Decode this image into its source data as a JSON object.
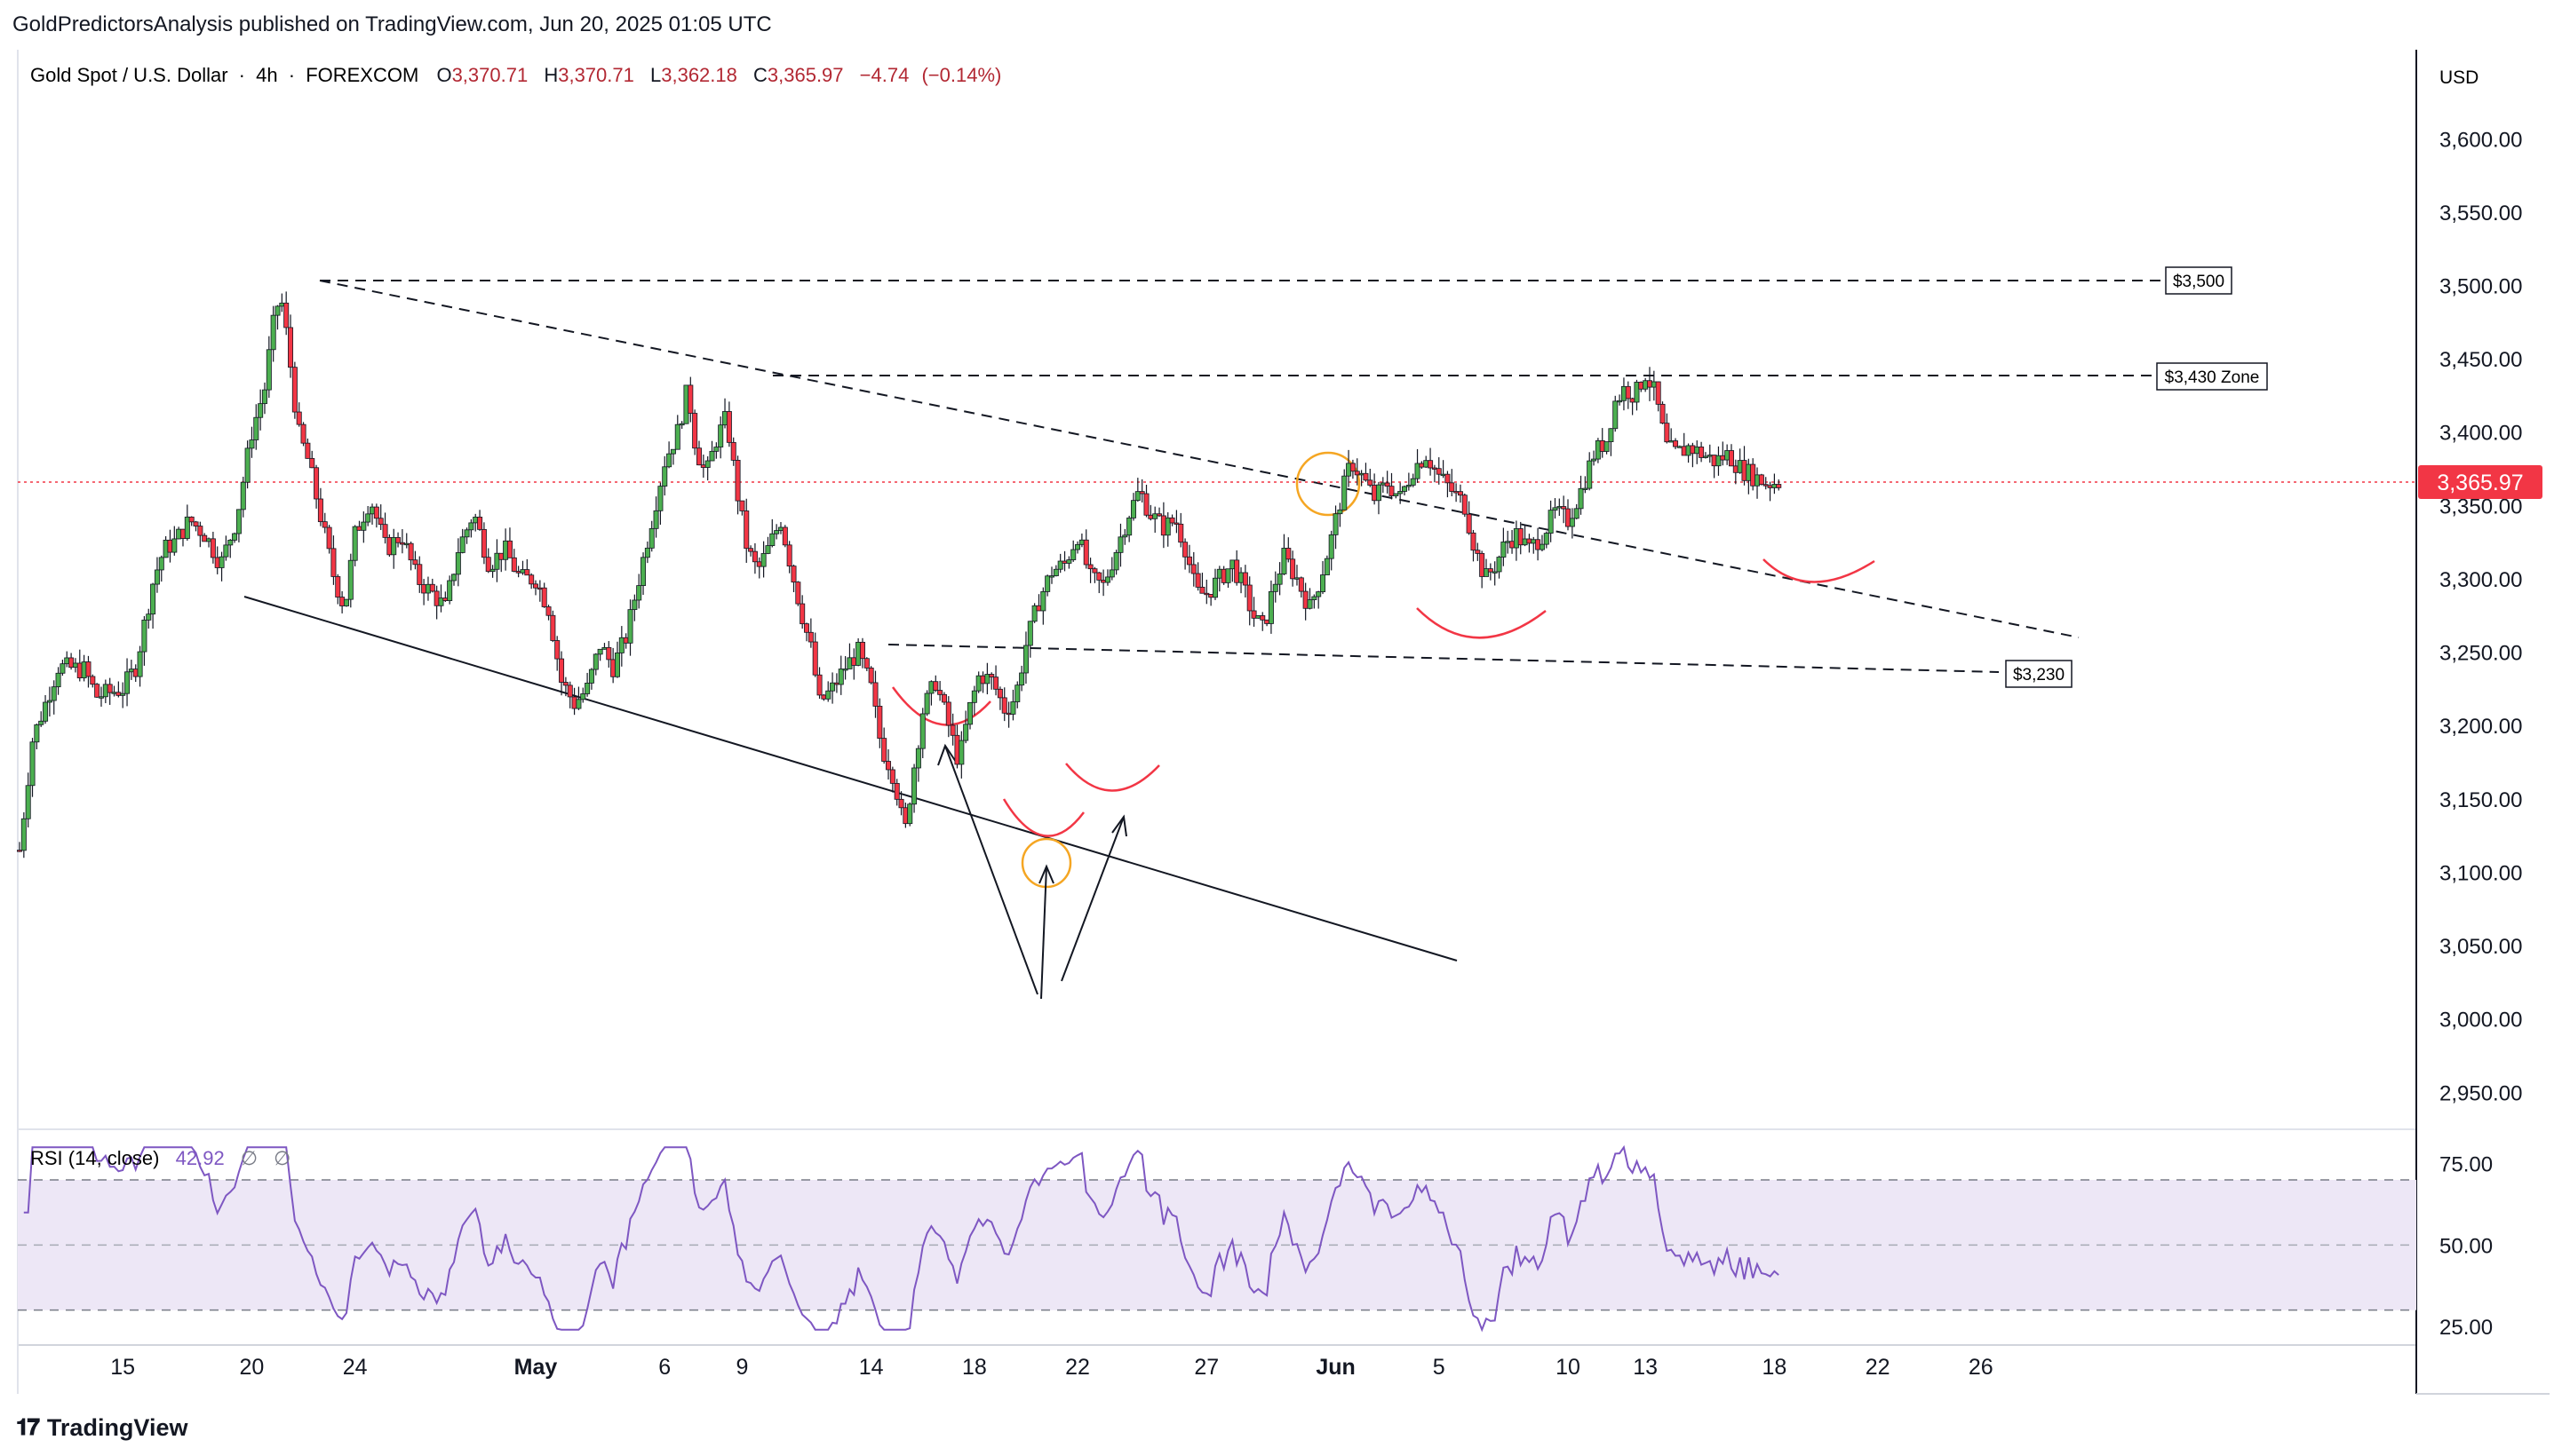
{
  "publisher_line": "GoldPredictorsAnalysis published on TradingView.com, Jun 20, 2025 01:05 UTC",
  "footer": {
    "brand": "TradingView"
  },
  "colors": {
    "bull": "#26a69a",
    "bull_body": "#4caf50",
    "bear": "#ef5350",
    "bear_body": "#f23645",
    "rsi_line": "#7e57c2",
    "rsi_band": "#ede7f6",
    "circle": "#f5a623",
    "last_price_bg": "#f23645"
  },
  "chart_data": [
    {
      "type": "candlestick",
      "symbol": "Gold Spot / U.S. Dollar",
      "interval": "4h",
      "exchange": "FOREXCOM",
      "ohlc_header": {
        "O": "3,370.71",
        "H": "3,370.71",
        "L": "3,362.18",
        "C": "3,365.97",
        "change": "−4.74",
        "change_pct": "(−0.14%)"
      },
      "currency": "USD",
      "last_price": 3365.97,
      "last_price_label": "3,365.97",
      "y_ticks": [
        2950,
        3000,
        3050,
        3100,
        3150,
        3200,
        3250,
        3300,
        3350,
        3400,
        3450,
        3500,
        3550,
        3600
      ],
      "y_tick_labels": [
        "2,950.00",
        "3,000.00",
        "3,050.00",
        "3,100.00",
        "3,150.00",
        "3,200.00",
        "3,250.00",
        "3,300.00",
        "3,350.00",
        "3,400.00",
        "3,450.00",
        "3,500.00",
        "3,550.00",
        "3,600.00"
      ],
      "ylim": [
        2932,
        3628
      ],
      "x_ticks": [
        {
          "label": "15",
          "day": 15
        },
        {
          "label": "20",
          "day": 20
        },
        {
          "label": "24",
          "day": 24
        },
        {
          "label": "May",
          "day": 31
        },
        {
          "label": "6",
          "day": 36
        },
        {
          "label": "9",
          "day": 39
        },
        {
          "label": "14",
          "day": 44
        },
        {
          "label": "18",
          "day": 48
        },
        {
          "label": "22",
          "day": 52
        },
        {
          "label": "27",
          "day": 57
        },
        {
          "label": "Jun",
          "day": 62
        },
        {
          "label": "5",
          "day": 66
        },
        {
          "label": "10",
          "day": 71
        },
        {
          "label": "13",
          "day": 74
        },
        {
          "label": "18",
          "day": 79
        },
        {
          "label": "22",
          "day": 83
        },
        {
          "label": "26",
          "day": 87
        }
      ],
      "x_tick_bold": [
        "May",
        "Jun"
      ],
      "price_path": [
        [
          11,
          3115
        ],
        [
          11.5,
          3190
        ],
        [
          12.5,
          3240
        ],
        [
          13.5,
          3238
        ],
        [
          14,
          3220
        ],
        [
          15,
          3225
        ],
        [
          15.5,
          3240
        ],
        [
          16.2,
          3300
        ],
        [
          16.6,
          3320
        ],
        [
          17,
          3325
        ],
        [
          17.6,
          3340
        ],
        [
          18.2,
          3330
        ],
        [
          18.8,
          3310
        ],
        [
          19.4,
          3340
        ],
        [
          20,
          3400
        ],
        [
          20.5,
          3430
        ],
        [
          20.8,
          3470
        ],
        [
          21.1,
          3495
        ],
        [
          21.4,
          3460
        ],
        [
          21.8,
          3400
        ],
        [
          22.2,
          3380
        ],
        [
          22.7,
          3340
        ],
        [
          23.2,
          3300
        ],
        [
          23.6,
          3280
        ],
        [
          24,
          3330
        ],
        [
          24.6,
          3355
        ],
        [
          25.2,
          3320
        ],
        [
          25.8,
          3330
        ],
        [
          26.4,
          3300
        ],
        [
          27,
          3290
        ],
        [
          27.5,
          3280
        ],
        [
          28,
          3320
        ],
        [
          28.6,
          3345
        ],
        [
          29.2,
          3310
        ],
        [
          29.8,
          3320
        ],
        [
          30.4,
          3300
        ],
        [
          31,
          3300
        ],
        [
          31.5,
          3280
        ],
        [
          32,
          3230
        ],
        [
          32.5,
          3215
        ],
        [
          33,
          3225
        ],
        [
          33.5,
          3255
        ],
        [
          34,
          3240
        ],
        [
          34.5,
          3260
        ],
        [
          35,
          3300
        ],
        [
          35.5,
          3340
        ],
        [
          36,
          3380
        ],
        [
          36.5,
          3400
        ],
        [
          36.9,
          3430
        ],
        [
          37.2,
          3390
        ],
        [
          37.6,
          3370
        ],
        [
          38,
          3395
        ],
        [
          38.4,
          3410
        ],
        [
          38.8,
          3360
        ],
        [
          39.2,
          3320
        ],
        [
          39.6,
          3305
        ],
        [
          40,
          3320
        ],
        [
          40.5,
          3340
        ],
        [
          41,
          3300
        ],
        [
          41.4,
          3270
        ],
        [
          41.7,
          3250
        ],
        [
          42,
          3215
        ],
        [
          42.5,
          3225
        ],
        [
          43,
          3240
        ],
        [
          43.5,
          3250
        ],
        [
          44,
          3225
        ],
        [
          44.4,
          3185
        ],
        [
          44.8,
          3170
        ],
        [
          45,
          3155
        ],
        [
          45.3,
          3125
        ],
        [
          45.6,
          3165
        ],
        [
          46,
          3210
        ],
        [
          46.5,
          3230
        ],
        [
          47,
          3200
        ],
        [
          47.4,
          3175
        ],
        [
          47.8,
          3210
        ],
        [
          48.2,
          3235
        ],
        [
          48.7,
          3230
        ],
        [
          49.2,
          3210
        ],
        [
          49.6,
          3220
        ],
        [
          50,
          3255
        ],
        [
          50.5,
          3285
        ],
        [
          51,
          3305
        ],
        [
          51.5,
          3310
        ],
        [
          52,
          3330
        ],
        [
          52.5,
          3300
        ],
        [
          53,
          3295
        ],
        [
          53.5,
          3320
        ],
        [
          54,
          3345
        ],
        [
          54.4,
          3360
        ],
        [
          54.8,
          3345
        ],
        [
          55.3,
          3335
        ],
        [
          55.8,
          3340
        ],
        [
          56.2,
          3320
        ],
        [
          56.6,
          3290
        ],
        [
          57,
          3290
        ],
        [
          57.5,
          3300
        ],
        [
          58,
          3310
        ],
        [
          58.4,
          3295
        ],
        [
          58.8,
          3275
        ],
        [
          59.2,
          3265
        ],
        [
          59.6,
          3295
        ],
        [
          60,
          3315
        ],
        [
          60.5,
          3300
        ],
        [
          61,
          3280
        ],
        [
          61.4,
          3300
        ],
        [
          61.8,
          3325
        ],
        [
          62.2,
          3355
        ],
        [
          62.6,
          3380
        ],
        [
          63,
          3370
        ],
        [
          63.5,
          3355
        ],
        [
          64,
          3365
        ],
        [
          64.5,
          3355
        ],
        [
          65,
          3375
        ],
        [
          65.5,
          3385
        ],
        [
          66,
          3370
        ],
        [
          66.5,
          3360
        ],
        [
          67,
          3350
        ],
        [
          67.4,
          3320
        ],
        [
          67.8,
          3300
        ],
        [
          68.2,
          3310
        ],
        [
          68.6,
          3325
        ],
        [
          69,
          3330
        ],
        [
          69.5,
          3320
        ],
        [
          70,
          3330
        ],
        [
          70.5,
          3345
        ],
        [
          71,
          3340
        ],
        [
          71.5,
          3360
        ],
        [
          72,
          3385
        ],
        [
          72.5,
          3395
        ],
        [
          72.8,
          3420
        ],
        [
          73.2,
          3430
        ],
        [
          73.6,
          3425
        ],
        [
          74,
          3440
        ],
        [
          74.4,
          3425
        ],
        [
          74.8,
          3390
        ],
        [
          75.2,
          3385
        ],
        [
          75.7,
          3390
        ],
        [
          76.2,
          3385
        ],
        [
          76.7,
          3380
        ],
        [
          77.2,
          3385
        ],
        [
          77.7,
          3375
        ],
        [
          78.2,
          3370
        ],
        [
          78.7,
          3365
        ],
        [
          79.2,
          3366
        ]
      ],
      "annotation_labels": [
        "$3,500",
        "$3,430 Zone",
        "$3,230"
      ]
    },
    {
      "type": "line",
      "indicator": "RSI (14, close)",
      "value_label": "42.92",
      "extra_labels": [
        "∅",
        "∅"
      ],
      "y_ticks": [
        25,
        50,
        75
      ],
      "y_tick_labels": [
        "25.00",
        "50.00",
        "75.00"
      ],
      "ylim": [
        22,
        82
      ],
      "band": [
        30,
        70
      ],
      "midline": 50
    }
  ]
}
